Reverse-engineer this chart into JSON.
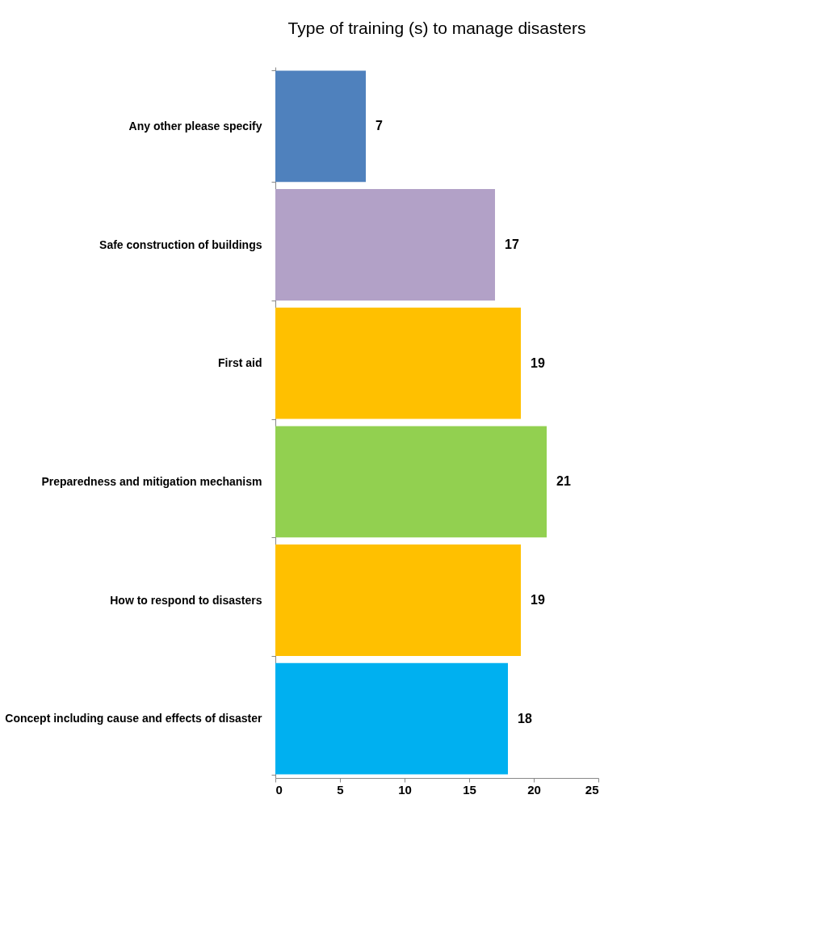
{
  "chart_data": {
    "type": "bar",
    "orientation": "horizontal",
    "title": "Type of training (s) to manage disasters",
    "categories": [
      "Any other please specify",
      "Safe construction of buildings",
      "First aid",
      "Preparedness and mitigation mechanism",
      "How to respond to disasters",
      "Concept including cause and effects of disaster"
    ],
    "values": [
      7,
      17,
      19,
      21,
      19,
      18
    ],
    "colors": [
      "#4f81bd",
      "#b2a1c7",
      "#ffc000",
      "#92d050",
      "#ffc000",
      "#00b0f0"
    ],
    "xlim": [
      0,
      25
    ],
    "xticks": [
      0,
      5,
      10,
      15,
      20,
      25
    ],
    "grid": false,
    "data_labels": true
  }
}
